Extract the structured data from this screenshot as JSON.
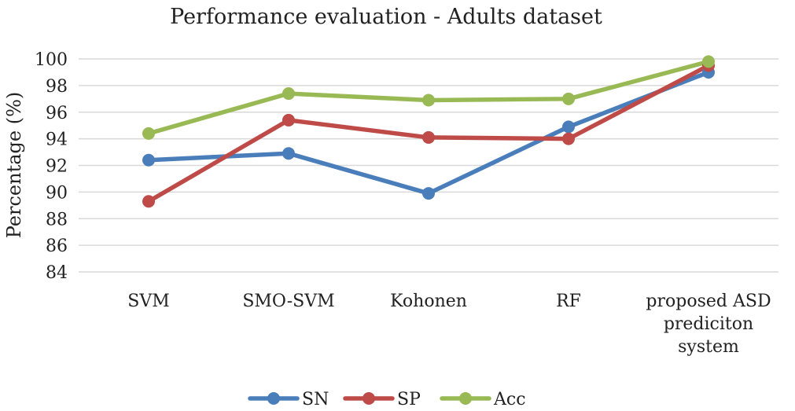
{
  "chart_data": {
    "type": "line",
    "title": "Performance evaluation - Adults dataset",
    "xlabel": "",
    "ylabel": "Percentage (%)",
    "ylim": [
      84,
      100
    ],
    "yticks": [
      84,
      86,
      88,
      90,
      92,
      94,
      96,
      98,
      100
    ],
    "categories": [
      [
        "SVM"
      ],
      [
        "SMO-SVM"
      ],
      [
        "Kohonen"
      ],
      [
        "RF"
      ],
      [
        "proposed ASD",
        "prediciton",
        "system"
      ]
    ],
    "series": [
      {
        "name": "SN",
        "color": "#4a7ebb",
        "values": [
          92.4,
          92.9,
          89.9,
          94.9,
          99.0
        ]
      },
      {
        "name": "SP",
        "color": "#be4b48",
        "values": [
          89.3,
          95.4,
          94.1,
          94.0,
          99.5
        ]
      },
      {
        "name": "Acc",
        "color": "#98b954",
        "values": [
          94.4,
          97.4,
          96.9,
          97.0,
          99.8
        ]
      }
    ],
    "grid": true,
    "legend": "bottom"
  }
}
